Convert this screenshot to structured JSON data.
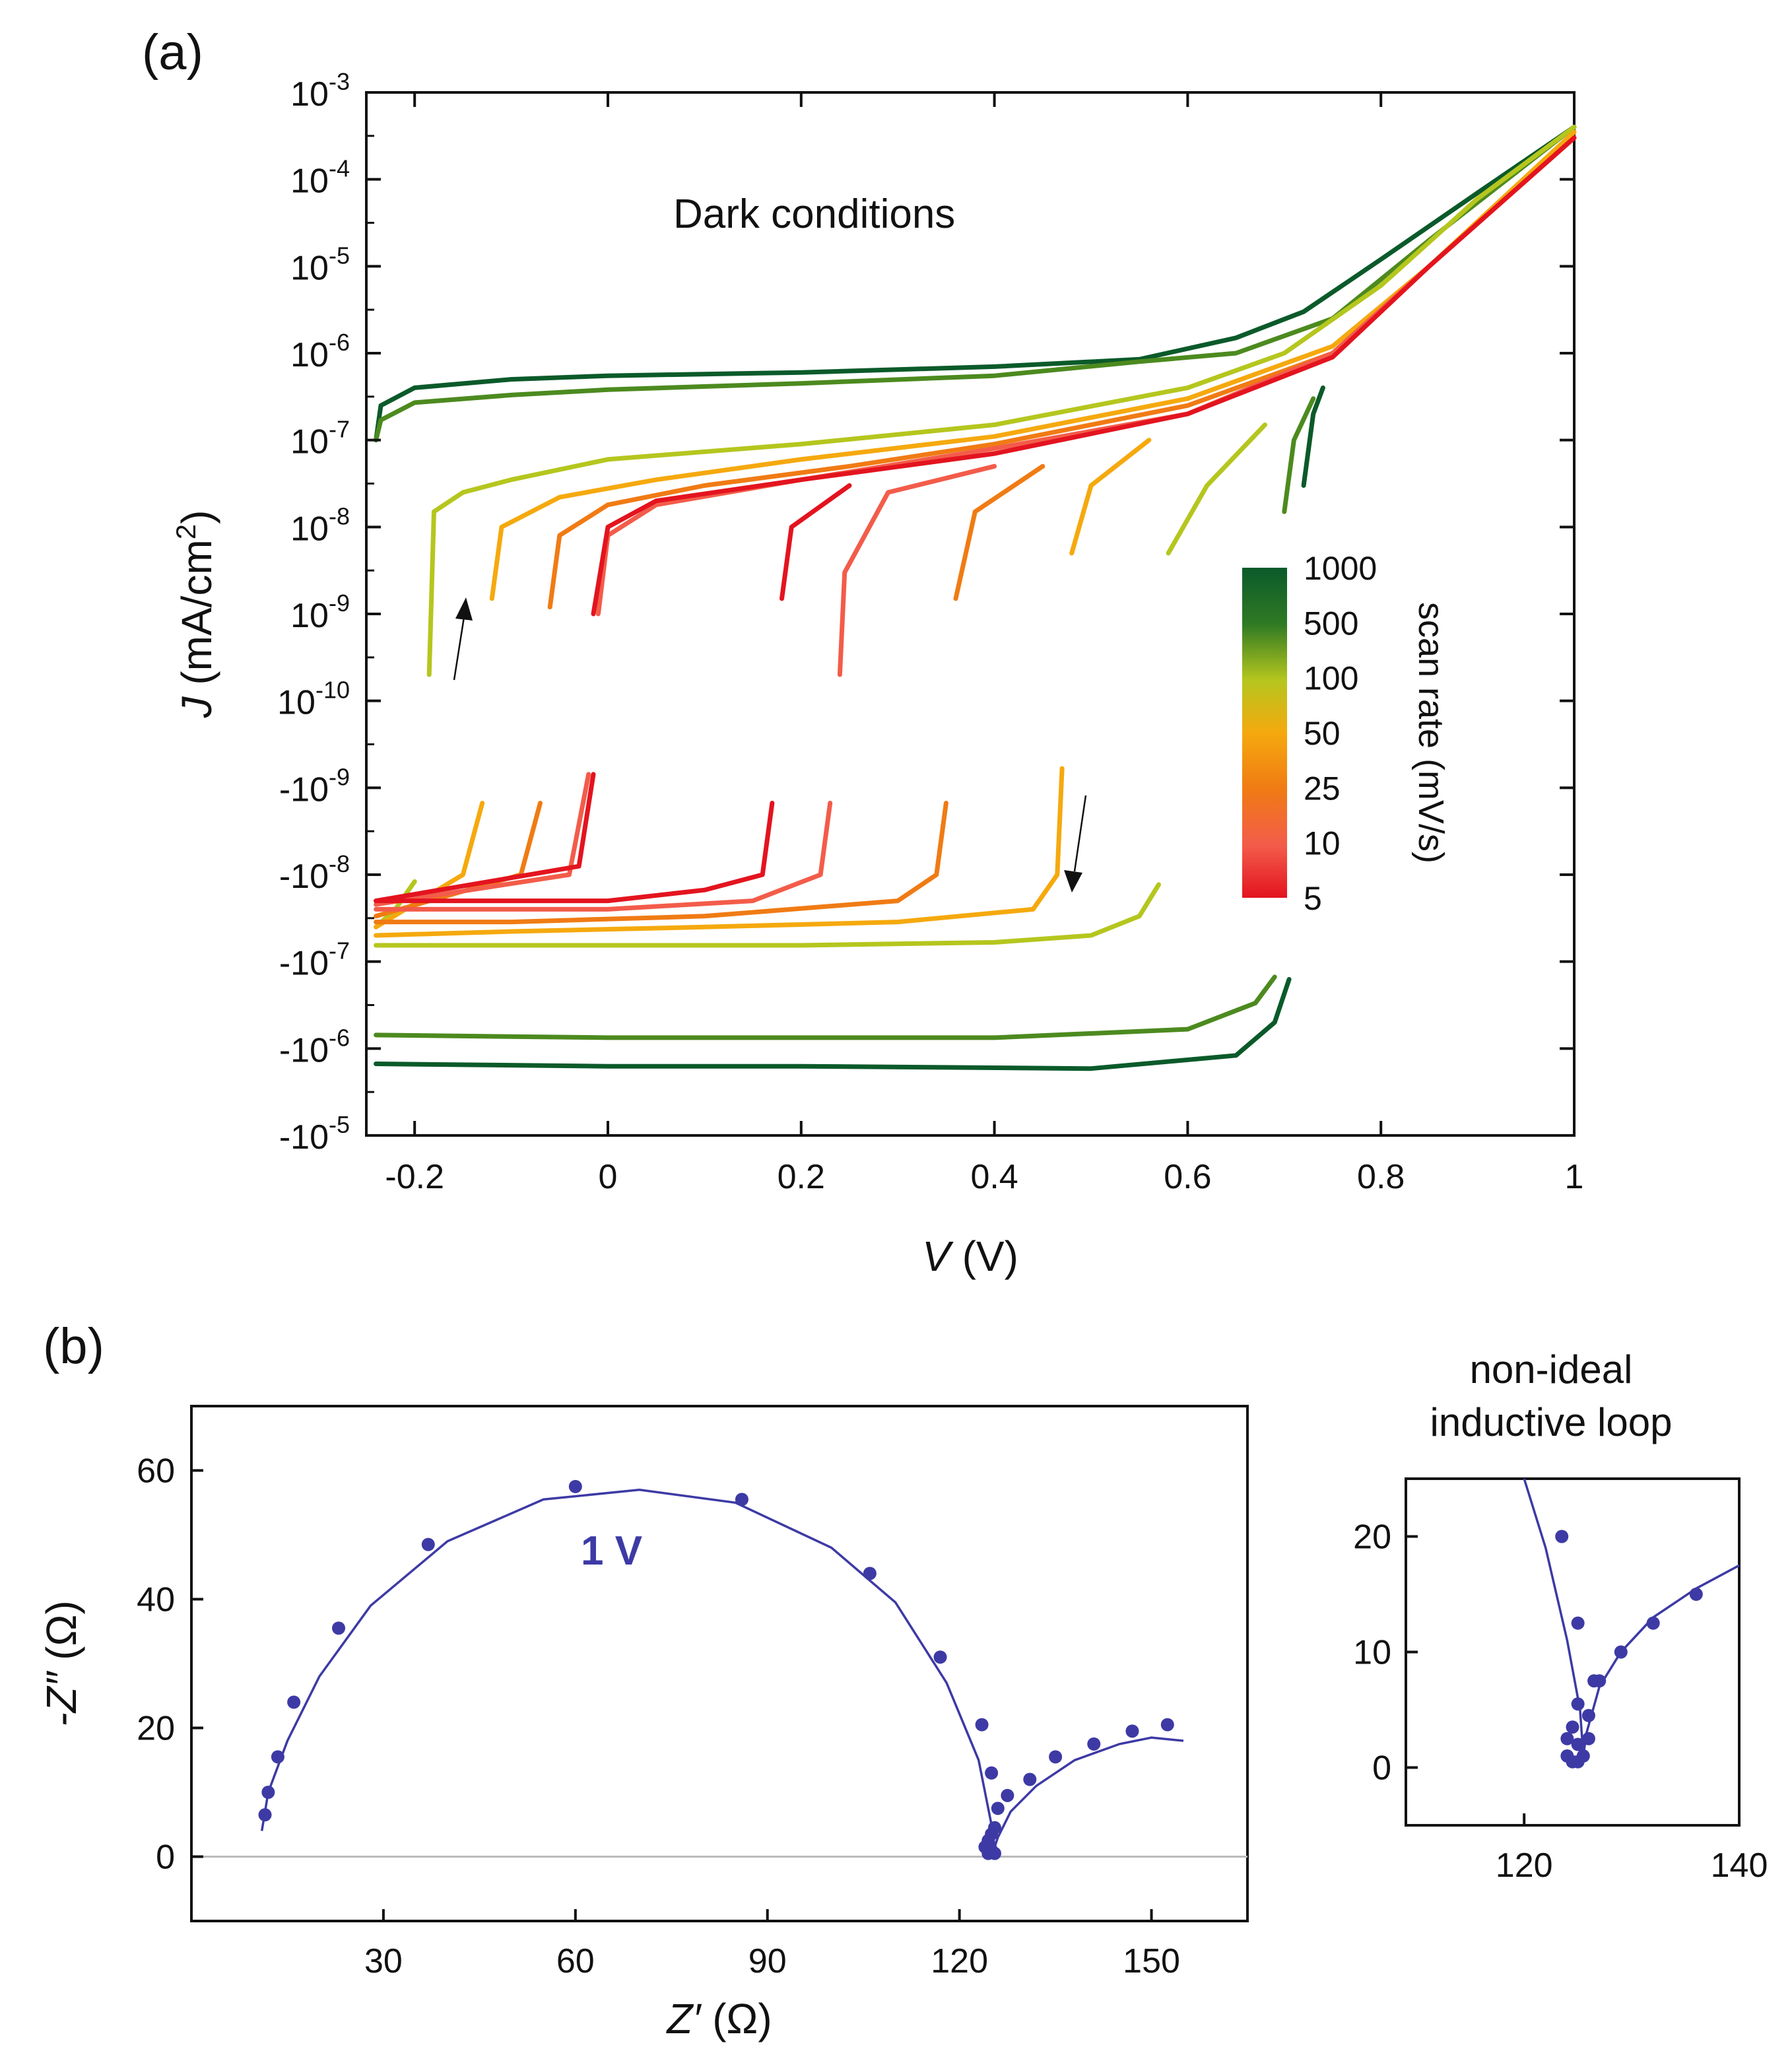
{
  "chart_data": [
    {
      "panel_label": "(a)",
      "type": "line",
      "annotation": "Dark conditions",
      "xlabel": "V (V)",
      "ylabel": "J (mA/cm²)",
      "xlim": [
        -0.25,
        1.0
      ],
      "x_ticks": [
        "-0.2",
        "0",
        "0.2",
        "0.4",
        "0.6",
        "0.8",
        "1"
      ],
      "x_tick_values": [
        -0.2,
        0,
        0.2,
        0.4,
        0.6,
        0.8,
        1.0
      ],
      "y_scale": "signed-log",
      "y_ticks": [
        {
          "base": "10",
          "exp": "-3"
        },
        {
          "base": "10",
          "exp": "-4"
        },
        {
          "base": "10",
          "exp": "-5"
        },
        {
          "base": "10",
          "exp": "-6"
        },
        {
          "base": "10",
          "exp": "-7"
        },
        {
          "base": "10",
          "exp": "-8"
        },
        {
          "base": "10",
          "exp": "-9"
        },
        {
          "base": "10",
          "exp": "-10"
        },
        {
          "base": "-10",
          "exp": "-9"
        },
        {
          "base": "-10",
          "exp": "-8"
        },
        {
          "base": "-10",
          "exp": "-7"
        },
        {
          "base": "-10",
          "exp": "-6"
        },
        {
          "base": "-10",
          "exp": "-5"
        }
      ],
      "colorbar": {
        "title": "scan rate (mV/s)",
        "labels": [
          "1000",
          "500",
          "100",
          "50",
          "25",
          "10",
          "5"
        ],
        "colors": [
          "#0b5a2a",
          "#4c8a1f",
          "#b5c61e",
          "#f5a90e",
          "#f07b14",
          "#f35c4a",
          "#e3141f"
        ]
      },
      "grid": false,
      "series": [
        {
          "color": "#0b5a2a",
          "forward": [
            [
              -0.24,
              "1e-7"
            ],
            [
              -0.235,
              "2.5e-7"
            ],
            [
              -0.2,
              "4e-7"
            ],
            [
              -0.1,
              "5e-7"
            ],
            [
              0,
              "5.5e-7"
            ],
            [
              0.2,
              "6e-7"
            ],
            [
              0.4,
              "7e-7"
            ],
            [
              0.55,
              "8.5e-7"
            ],
            [
              0.65,
              "1.5e-6"
            ],
            [
              0.72,
              "3e-6"
            ],
            [
              0.8,
              "1.2e-5"
            ],
            [
              0.9,
              "7e-5"
            ],
            [
              1.0,
              "4e-4"
            ]
          ],
          "forward_start": [
            [
              0.72,
              "3e-8"
            ],
            [
              0.73,
              "2e-7"
            ],
            [
              0.74,
              "4e-7"
            ]
          ],
          "reverse": [
            [
              0.705,
              "-1.6e-7"
            ],
            [
              0.69,
              "-5e-7"
            ],
            [
              0.65,
              "-1.2e-6"
            ],
            [
              0.5,
              "-1.7e-6"
            ],
            [
              0.2,
              "-1.6e-6"
            ],
            [
              0,
              "-1.6e-6"
            ],
            [
              -0.24,
              "-1.5e-6"
            ]
          ]
        },
        {
          "color": "#4c8a1f",
          "forward": [
            [
              -0.24,
              "1e-7"
            ],
            [
              -0.235,
              "1.7e-7"
            ],
            [
              -0.2,
              "2.7e-7"
            ],
            [
              -0.1,
              "3.3e-7"
            ],
            [
              0,
              "3.8e-7"
            ],
            [
              0.2,
              "4.5e-7"
            ],
            [
              0.4,
              "5.5e-7"
            ],
            [
              0.55,
              "8e-7"
            ],
            [
              0.65,
              "1e-6"
            ],
            [
              0.75,
              "2.5e-6"
            ],
            [
              0.85,
              "2e-5"
            ],
            [
              1.0,
              "4e-4"
            ]
          ],
          "forward_start": [
            [
              0.7,
              "1.5e-8"
            ],
            [
              0.71,
              "1e-7"
            ],
            [
              0.73,
              "3e-7"
            ]
          ],
          "reverse": [
            [
              0.69,
              "-1.5e-7"
            ],
            [
              0.67,
              "-3e-7"
            ],
            [
              0.6,
              "-6e-7"
            ],
            [
              0.4,
              "-7.5e-7"
            ],
            [
              0.2,
              "-7.5e-7"
            ],
            [
              0,
              "-7.5e-7"
            ],
            [
              -0.24,
              "-7e-7"
            ]
          ]
        },
        {
          "color": "#b5c61e",
          "forward": [
            [
              -0.185,
              "2e-10"
            ],
            [
              -0.18,
              "1.5e-8"
            ],
            [
              -0.15,
              "2.5e-8"
            ],
            [
              -0.1,
              "3.5e-8"
            ],
            [
              0,
              "6e-8"
            ],
            [
              0.2,
              "9e-8"
            ],
            [
              0.4,
              "1.5e-7"
            ],
            [
              0.6,
              "4e-7"
            ],
            [
              0.7,
              "1e-6"
            ],
            [
              0.8,
              "6e-6"
            ],
            [
              0.9,
              "6e-5"
            ],
            [
              1.0,
              "4e-4"
            ]
          ],
          "forward_start": [
            [
              0.58,
              "5e-9"
            ],
            [
              0.62,
              "3e-8"
            ],
            [
              0.68,
              "1.5e-7"
            ]
          ],
          "reverse": [
            [
              0.57,
              "-1.3e-8"
            ],
            [
              0.55,
              "-3e-8"
            ],
            [
              0.5,
              "-5e-8"
            ],
            [
              0.4,
              "-6e-8"
            ],
            [
              0.2,
              "-6.5e-8"
            ],
            [
              0,
              "-6.5e-8"
            ],
            [
              -0.24,
              "-6.5e-8"
            ]
          ],
          "reverse_start": [
            [
              -0.2,
              "-1.2e-8"
            ],
            [
              -0.22,
              "-2.5e-8"
            ],
            [
              -0.24,
              "-4e-8"
            ]
          ]
        },
        {
          "color": "#f5a90e",
          "forward": [
            [
              -0.12,
              "1.5e-9"
            ],
            [
              -0.11,
              "1e-8"
            ],
            [
              -0.05,
              "2.2e-8"
            ],
            [
              0.05,
              "3.5e-8"
            ],
            [
              0.2,
              "6e-8"
            ],
            [
              0.4,
              "1.1e-7"
            ],
            [
              0.6,
              "3e-7"
            ],
            [
              0.75,
              "1.2e-6"
            ],
            [
              0.85,
              "1e-5"
            ],
            [
              1.0,
              "3.5e-4"
            ]
          ],
          "forward_start": [
            [
              0.48,
              "5e-9"
            ],
            [
              0.5,
              "3e-8"
            ],
            [
              0.56,
              "1e-7"
            ]
          ],
          "reverse": [
            [
              0.47,
              "-6e-10"
            ],
            [
              0.465,
              "-1e-8"
            ],
            [
              0.44,
              "-2.5e-8"
            ],
            [
              0.3,
              "-3.5e-8"
            ],
            [
              0.1,
              "-4e-8"
            ],
            [
              -0.1,
              "-4.5e-8"
            ],
            [
              -0.24,
              "-5e-8"
            ]
          ],
          "reverse_start": [
            [
              -0.13,
              "-1.5e-9"
            ],
            [
              -0.15,
              "-1e-8"
            ],
            [
              -0.24,
              "-4e-8"
            ]
          ]
        },
        {
          "color": "#f07b14",
          "forward": [
            [
              -0.06,
              "1.2e-9"
            ],
            [
              -0.05,
              "8e-9"
            ],
            [
              0,
              "1.8e-8"
            ],
            [
              0.1,
              "3e-8"
            ],
            [
              0.25,
              "5e-8"
            ],
            [
              0.4,
              "9e-8"
            ],
            [
              0.6,
              "2.5e-7"
            ],
            [
              0.75,
              "1e-6"
            ],
            [
              0.85,
              "1e-5"
            ],
            [
              1.0,
              "3e-4"
            ]
          ],
          "forward_start": [
            [
              0.36,
              "1.5e-9"
            ],
            [
              0.38,
              "1.5e-8"
            ],
            [
              0.45,
              "5e-8"
            ]
          ],
          "reverse": [
            [
              0.35,
              "-1.5e-9"
            ],
            [
              0.34,
              "-1e-8"
            ],
            [
              0.3,
              "-2e-8"
            ],
            [
              0.1,
              "-3e-8"
            ],
            [
              -0.1,
              "-3.5e-8"
            ],
            [
              -0.24,
              "-3.5e-8"
            ]
          ],
          "reverse_start": [
            [
              -0.07,
              "-1.5e-9"
            ],
            [
              -0.09,
              "-1e-8"
            ],
            [
              -0.24,
              "-3e-8"
            ]
          ]
        },
        {
          "color": "#f35c4a",
          "forward": [
            [
              -0.01,
              "1e-9"
            ],
            [
              0,
              "8e-9"
            ],
            [
              0.05,
              "1.8e-8"
            ],
            [
              0.2,
              "3.5e-8"
            ],
            [
              0.4,
              "8e-8"
            ],
            [
              0.6,
              "2e-7"
            ],
            [
              0.75,
              "1e-6"
            ],
            [
              0.85,
              "1e-5"
            ],
            [
              1.0,
              "3e-4"
            ]
          ],
          "forward_start": [
            [
              0.24,
              "2e-10"
            ],
            [
              0.245,
              "3e-9"
            ],
            [
              0.29,
              "2.5e-8"
            ],
            [
              0.4,
              "5e-8"
            ]
          ],
          "reverse": [
            [
              0.23,
              "-1.5e-9"
            ],
            [
              0.22,
              "-1e-8"
            ],
            [
              0.15,
              "-2e-8"
            ],
            [
              0,
              "-2.5e-8"
            ],
            [
              -0.24,
              "-2.5e-8"
            ]
          ],
          "reverse_start": [
            [
              -0.02,
              "-7e-10"
            ],
            [
              -0.04,
              "-1e-8"
            ],
            [
              -0.24,
              "-2.2e-8"
            ]
          ]
        },
        {
          "color": "#e3141f",
          "forward": [
            [
              -0.015,
              "1e-9"
            ],
            [
              0,
              "1e-8"
            ],
            [
              0.05,
              "2e-8"
            ],
            [
              0.2,
              "3.5e-8"
            ],
            [
              0.4,
              "7e-8"
            ],
            [
              0.6,
              "2e-7"
            ],
            [
              0.75,
              "9e-7"
            ],
            [
              0.85,
              "1e-5"
            ],
            [
              1.0,
              "3e-4"
            ]
          ],
          "forward_start": [
            [
              0.18,
              "1.5e-9"
            ],
            [
              0.19,
              "1e-8"
            ],
            [
              0.25,
              "3e-8"
            ]
          ],
          "reverse": [
            [
              0.17,
              "-1.5e-9"
            ],
            [
              0.16,
              "-1e-8"
            ],
            [
              0.1,
              "-1.5e-8"
            ],
            [
              0,
              "-2e-8"
            ],
            [
              -0.24,
              "-2e-8"
            ]
          ],
          "reverse_start": [
            [
              -0.015,
              "-7e-10"
            ],
            [
              -0.03,
              "-8e-9"
            ],
            [
              -0.24,
              "-2e-8"
            ]
          ]
        }
      ]
    },
    {
      "panel_label": "(b)",
      "type": "scatter",
      "annotation": "1 V",
      "xlabel": "Z′ (Ω)",
      "ylabel": "-Z″ (Ω)",
      "xlim": [
        0,
        165
      ],
      "ylim": [
        -10,
        70
      ],
      "x_ticks": [
        "30",
        "60",
        "90",
        "120",
        "150"
      ],
      "x_tick_values": [
        30,
        60,
        90,
        120,
        150
      ],
      "y_ticks": [
        "0",
        "20",
        "40",
        "60"
      ],
      "y_tick_values": [
        0,
        20,
        40,
        60
      ],
      "zero_line": true,
      "series_color": "#3d3aa5",
      "points": [
        [
          11.5,
          6.5
        ],
        [
          12,
          10
        ],
        [
          13.5,
          15.5
        ],
        [
          16,
          24
        ],
        [
          23,
          35.5
        ],
        [
          37,
          48.5
        ],
        [
          60,
          57.5
        ],
        [
          86,
          55.5
        ],
        [
          106,
          44
        ],
        [
          117,
          31
        ],
        [
          123.5,
          20.5
        ],
        [
          125,
          13
        ],
        [
          126,
          7.5
        ],
        [
          127.5,
          9.5
        ],
        [
          131,
          12
        ],
        [
          135,
          15.5
        ],
        [
          141,
          17.5
        ],
        [
          147,
          19.5
        ],
        [
          152.5,
          20.5
        ],
        [
          124,
          1.5
        ],
        [
          124.5,
          2.5
        ],
        [
          125,
          3.5
        ],
        [
          125.5,
          4.5
        ],
        [
          124.5,
          0.5
        ],
        [
          125,
          1
        ],
        [
          125.5,
          0.5
        ]
      ],
      "fit": [
        [
          11,
          4
        ],
        [
          12,
          10
        ],
        [
          15,
          18
        ],
        [
          20,
          28
        ],
        [
          28,
          39
        ],
        [
          40,
          49
        ],
        [
          55,
          55.5
        ],
        [
          70,
          57
        ],
        [
          85,
          55
        ],
        [
          100,
          48
        ],
        [
          110,
          39.5
        ],
        [
          118,
          27
        ],
        [
          123,
          15
        ],
        [
          125,
          5
        ],
        [
          125.5,
          1.5
        ],
        [
          126,
          3
        ],
        [
          128,
          7
        ],
        [
          132,
          11
        ],
        [
          138,
          15
        ],
        [
          145,
          17.5
        ],
        [
          150,
          18.5
        ],
        [
          155,
          18
        ]
      ]
    },
    {
      "type": "scatter",
      "title": "non-ideal inductive loop",
      "xlim": [
        109,
        140
      ],
      "ylim": [
        -5,
        25
      ],
      "x_ticks": [
        "120",
        "140"
      ],
      "x_tick_values": [
        120,
        140
      ],
      "y_ticks": [
        "0",
        "10",
        "20"
      ],
      "y_tick_values": [
        0,
        10,
        20
      ],
      "series_color": "#3d3aa5",
      "points": [
        [
          123.5,
          20
        ],
        [
          125,
          12.5
        ],
        [
          125,
          5.5
        ],
        [
          126,
          4.5
        ],
        [
          126.5,
          7.5
        ],
        [
          127,
          7.5
        ],
        [
          129,
          10
        ],
        [
          132,
          12.5
        ],
        [
          136,
          15
        ],
        [
          124,
          2.5
        ],
        [
          124.5,
          3.5
        ],
        [
          125,
          2
        ],
        [
          126,
          2.5
        ],
        [
          124,
          1
        ],
        [
          124.5,
          0.5
        ],
        [
          125,
          0.5
        ],
        [
          125.5,
          1
        ]
      ],
      "fit": [
        [
          120,
          25
        ],
        [
          122,
          19
        ],
        [
          124,
          11
        ],
        [
          125.2,
          5
        ],
        [
          125.5,
          1
        ],
        [
          125.8,
          3
        ],
        [
          127,
          7
        ],
        [
          129,
          10
        ],
        [
          132,
          13
        ],
        [
          136,
          15.5
        ],
        [
          140,
          17.5
        ]
      ]
    }
  ]
}
